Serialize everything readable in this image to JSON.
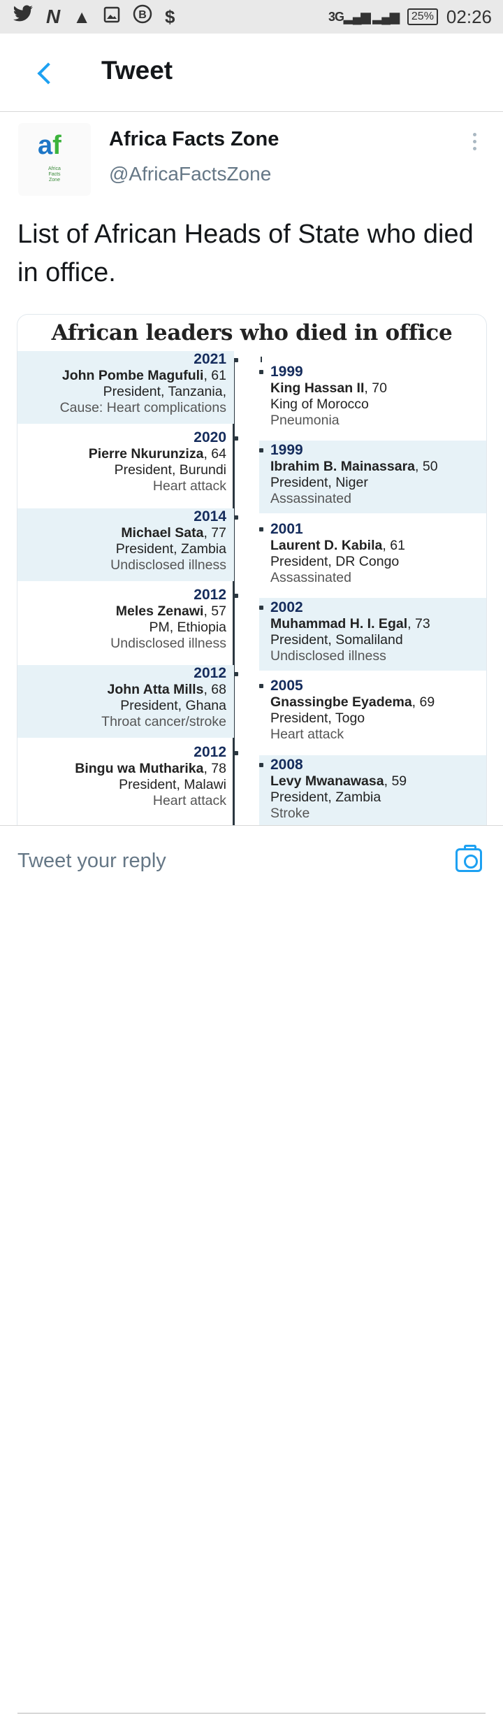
{
  "status_bar": {
    "left_icons": [
      "twitter-icon",
      "n-icon",
      "warning-icon",
      "gallery-icon",
      "b-icon",
      "dollar-icon"
    ],
    "network": "3G",
    "battery": "25%",
    "time": "02:26"
  },
  "app_bar": {
    "title": "Tweet"
  },
  "tweet": {
    "author_name": "Africa Facts Zone",
    "author_handle": "@AfricaFactsZone",
    "avatar_text": "Africa Facts Zone",
    "text": "List of African Heads of State who died in office."
  },
  "card": {
    "title": "African leaders who died in office",
    "left_entries": [
      {
        "year": "2021",
        "name": "John Pombe Magufuli",
        "age": "61",
        "role": "President, Tanzania,",
        "cause": "Cause: Heart complications"
      },
      {
        "year": "2020",
        "name": "Pierre Nkurunziza",
        "age": "64",
        "role": "President, Burundi",
        "cause": "Heart attack"
      },
      {
        "year": "2014",
        "name": "Michael Sata",
        "age": "77",
        "role": "President, Zambia",
        "cause": "Undisclosed illness"
      },
      {
        "year": "2012",
        "name": "Meles Zenawi",
        "age": "57",
        "role": "PM, Ethiopia",
        "cause": "Undisclosed illness"
      },
      {
        "year": "2012",
        "name": "John Atta Mills",
        "age": "68",
        "role": "President, Ghana",
        "cause": "Throat cancer/stroke"
      },
      {
        "year": "2012",
        "name": "Bingu wa Mutharika",
        "age": "78",
        "role": "President, Malawi",
        "cause": "Heart attack"
      }
    ],
    "right_entries": [
      {
        "year": "1999",
        "name": "King Hassan II",
        "age": "70",
        "role": "King of Morocco",
        "cause": "Pneumonia"
      },
      {
        "year": "1999",
        "name": "Ibrahim B. Mainassara",
        "age": "50",
        "role": "President, Niger",
        "cause": "Assassinated"
      },
      {
        "year": "2001",
        "name": "Laurent D. Kabila",
        "age": "61",
        "role": "President, DR Congo",
        "cause": "Assassinated"
      },
      {
        "year": "2002",
        "name": "Muhammad H. I. Egal",
        "age": "73",
        "role": "President, Somaliland",
        "cause": "Undisclosed illness"
      },
      {
        "year": "2005",
        "name": "Gnassingbe Eyadema",
        "age": "69",
        "role": "President, Togo",
        "cause": "Heart attack"
      },
      {
        "year": "2008",
        "name": "Levy Mwanawasa",
        "age": "59",
        "role": "President, Zambia",
        "cause": "Stroke"
      }
    ]
  },
  "reply_bar": {
    "placeholder": "Tweet your reply"
  }
}
